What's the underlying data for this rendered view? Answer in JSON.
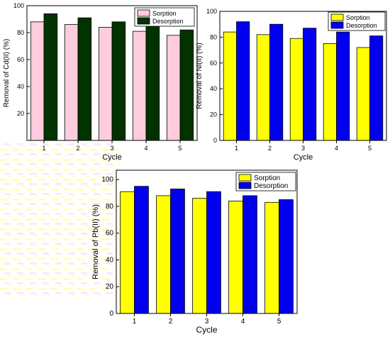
{
  "colors": {
    "sorption": "#ffff00",
    "sorption_tl": "#ffccdd",
    "desorption": "#0000ee",
    "desorption_tl": "#003300",
    "bar_outline": "#000000"
  },
  "chart_data": [
    {
      "type": "bar",
      "title": "",
      "xlabel": "Cycle",
      "ylabel": "Removal of Cd(II) (%)",
      "categories": [
        "1",
        "2",
        "3",
        "4",
        "5"
      ],
      "ylim": [
        0,
        100
      ],
      "yticks": [
        20,
        40,
        60,
        80,
        100
      ],
      "legend": "top-right",
      "series": [
        {
          "name": "Sorption",
          "values": [
            88,
            86,
            84,
            81,
            78
          ]
        },
        {
          "name": "Desorption",
          "values": [
            94,
            91,
            88,
            85,
            82
          ]
        }
      ]
    },
    {
      "type": "bar",
      "title": "",
      "xlabel": "Cycle",
      "ylabel": "Removal of Ni(II) (%)",
      "categories": [
        "1",
        "2",
        "3",
        "4",
        "5"
      ],
      "ylim": [
        0,
        100
      ],
      "yticks": [
        0,
        20,
        40,
        60,
        80,
        100
      ],
      "legend": "top-right",
      "series": [
        {
          "name": "Sorption",
          "values": [
            84,
            82,
            79,
            75,
            72
          ]
        },
        {
          "name": "Desorption",
          "values": [
            92,
            90,
            87,
            84,
            81
          ]
        }
      ]
    },
    {
      "type": "bar",
      "title": "",
      "xlabel": "Cycle",
      "ylabel": "Removal of Pb(II) (%)",
      "categories": [
        "1",
        "2",
        "3",
        "4",
        "5"
      ],
      "ylim": [
        0,
        107
      ],
      "yticks": [
        0,
        20,
        40,
        60,
        80,
        100
      ],
      "legend": "top-right",
      "series": [
        {
          "name": "Sorption",
          "values": [
            91,
            88,
            86,
            84,
            83
          ]
        },
        {
          "name": "Desorption",
          "values": [
            95,
            93,
            91,
            88,
            85
          ]
        }
      ]
    }
  ]
}
